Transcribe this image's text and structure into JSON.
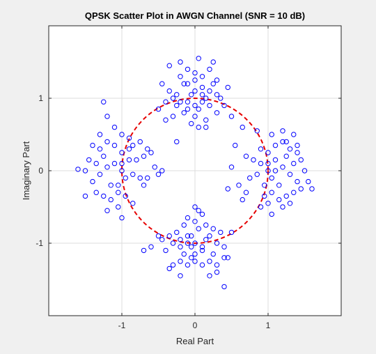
{
  "chart_data": {
    "type": "scatter",
    "title": "QPSK Scatter Plot in AWGN Channel (SNR = 10 dB)",
    "xlabel": "Real Part",
    "ylabel": "Imaginary Part",
    "xlim": [
      -2,
      2
    ],
    "ylim": [
      -2,
      2
    ],
    "xticks": [
      -1,
      0,
      1
    ],
    "yticks": [
      -1,
      0,
      1
    ],
    "xtick_labels": [
      "-1",
      "0",
      "1"
    ],
    "ytick_labels": [
      "-1",
      "0",
      "1"
    ],
    "grid": true,
    "marker_color": "#0000ff",
    "reference_circle": {
      "center": [
        0,
        0
      ],
      "radius": 1,
      "color": "#e60000",
      "style": "dashed"
    },
    "series": [
      {
        "marker": "circle",
        "points": [
          [
            -0.3,
            1.0
          ],
          [
            -0.25,
            0.9
          ],
          [
            -0.15,
            1.2
          ],
          [
            -0.1,
            0.95
          ],
          [
            -0.05,
            1.05
          ],
          [
            0.0,
            1.1
          ],
          [
            0.05,
            0.85
          ],
          [
            0.1,
            1.15
          ],
          [
            0.15,
            1.0
          ],
          [
            0.2,
            0.9
          ],
          [
            0.25,
            1.2
          ],
          [
            0.3,
            1.05
          ],
          [
            -0.35,
            1.1
          ],
          [
            -0.2,
            1.3
          ],
          [
            -0.1,
            1.4
          ],
          [
            0.0,
            1.35
          ],
          [
            0.1,
            1.3
          ],
          [
            0.2,
            1.4
          ],
          [
            0.3,
            1.25
          ],
          [
            -0.3,
            0.75
          ],
          [
            -0.15,
            0.8
          ],
          [
            0.0,
            0.75
          ],
          [
            0.15,
            0.7
          ],
          [
            0.3,
            0.8
          ],
          [
            0.4,
            0.9
          ],
          [
            -0.4,
            0.95
          ],
          [
            -0.45,
            1.2
          ],
          [
            0.45,
            1.15
          ],
          [
            -0.05,
            0.65
          ],
          [
            0.05,
            1.55
          ],
          [
            -0.2,
            1.5
          ],
          [
            0.25,
            1.5
          ],
          [
            -0.35,
            1.45
          ],
          [
            -0.25,
            1.05
          ],
          [
            -0.2,
            0.95
          ],
          [
            0.35,
            1.0
          ],
          [
            0.1,
            1.05
          ],
          [
            0.0,
            0.9
          ],
          [
            -0.1,
            1.2
          ],
          [
            0.2,
            1.1
          ],
          [
            0.05,
            0.6
          ],
          [
            -0.4,
            0.7
          ],
          [
            0.5,
            0.75
          ],
          [
            -0.5,
            0.85
          ],
          [
            0.65,
            0.6
          ],
          [
            -0.25,
            0.4
          ],
          [
            0.15,
            0.6
          ],
          [
            0.0,
            1.25
          ],
          [
            0.1,
            0.95
          ],
          [
            -0.1,
            0.85
          ],
          [
            1.0,
            0.0
          ],
          [
            0.9,
            0.1
          ],
          [
            1.1,
            0.15
          ],
          [
            1.05,
            -0.1
          ],
          [
            0.95,
            -0.2
          ],
          [
            1.2,
            0.05
          ],
          [
            0.85,
            -0.05
          ],
          [
            1.15,
            -0.2
          ],
          [
            1.25,
            0.2
          ],
          [
            0.8,
            0.15
          ],
          [
            1.3,
            -0.05
          ],
          [
            1.35,
            0.1
          ],
          [
            1.4,
            -0.15
          ],
          [
            1.45,
            0.15
          ],
          [
            1.5,
            0.0
          ],
          [
            1.6,
            -0.25
          ],
          [
            0.75,
            -0.1
          ],
          [
            0.7,
            0.2
          ],
          [
            0.7,
            -0.3
          ],
          [
            0.9,
            0.3
          ],
          [
            1.0,
            0.25
          ],
          [
            1.1,
            0.35
          ],
          [
            1.2,
            0.4
          ],
          [
            1.3,
            0.3
          ],
          [
            1.4,
            0.35
          ],
          [
            0.95,
            -0.35
          ],
          [
            1.05,
            -0.3
          ],
          [
            1.15,
            -0.4
          ],
          [
            1.25,
            -0.35
          ],
          [
            1.35,
            -0.3
          ],
          [
            1.0,
            -0.45
          ],
          [
            0.9,
            -0.5
          ],
          [
            1.2,
            -0.5
          ],
          [
            1.3,
            -0.45
          ],
          [
            1.05,
            0.5
          ],
          [
            1.2,
            0.55
          ],
          [
            1.25,
            0.4
          ],
          [
            1.35,
            0.5
          ],
          [
            0.55,
            0.35
          ],
          [
            0.6,
            -0.2
          ],
          [
            0.65,
            -0.4
          ],
          [
            0.5,
            0.05
          ],
          [
            0.45,
            -0.25
          ],
          [
            1.55,
            -0.15
          ],
          [
            1.45,
            -0.25
          ],
          [
            1.4,
            0.25
          ],
          [
            0.85,
            0.55
          ],
          [
            1.05,
            -0.6
          ],
          [
            1.0,
            0.1
          ],
          [
            1.1,
            0.0
          ],
          [
            -1.0,
            0.0
          ],
          [
            -1.1,
            0.1
          ],
          [
            -0.9,
            0.15
          ],
          [
            -0.95,
            -0.1
          ],
          [
            -1.05,
            -0.2
          ],
          [
            -1.2,
            0.05
          ],
          [
            -0.85,
            -0.05
          ],
          [
            -1.15,
            -0.2
          ],
          [
            -1.25,
            0.2
          ],
          [
            -0.8,
            0.15
          ],
          [
            -1.3,
            -0.05
          ],
          [
            -1.35,
            0.1
          ],
          [
            -1.4,
            -0.15
          ],
          [
            -1.45,
            0.15
          ],
          [
            -1.5,
            0.0
          ],
          [
            -1.6,
            0.02
          ],
          [
            -0.75,
            -0.1
          ],
          [
            -0.7,
            0.2
          ],
          [
            -0.7,
            -0.2
          ],
          [
            -0.9,
            0.3
          ],
          [
            -1.0,
            0.25
          ],
          [
            -1.1,
            0.35
          ],
          [
            -1.2,
            0.4
          ],
          [
            -1.3,
            0.3
          ],
          [
            -1.4,
            0.35
          ],
          [
            -0.95,
            -0.35
          ],
          [
            -1.05,
            -0.3
          ],
          [
            -1.15,
            -0.4
          ],
          [
            -1.25,
            -0.35
          ],
          [
            -1.35,
            -0.3
          ],
          [
            -1.0,
            0.5
          ],
          [
            -0.9,
            0.45
          ],
          [
            -1.1,
            0.6
          ],
          [
            -1.3,
            0.5
          ],
          [
            -1.05,
            -0.5
          ],
          [
            -1.2,
            -0.55
          ],
          [
            -0.85,
            -0.45
          ],
          [
            -1.0,
            -0.65
          ],
          [
            -0.55,
            0.05
          ],
          [
            -0.6,
            0.25
          ],
          [
            -0.65,
            -0.1
          ],
          [
            -0.5,
            -0.05
          ],
          [
            -0.45,
            0.0
          ],
          [
            -0.65,
            0.3
          ],
          [
            -1.5,
            -0.35
          ],
          [
            -1.25,
            0.95
          ],
          [
            -1.2,
            0.75
          ],
          [
            -0.75,
            0.4
          ],
          [
            -0.85,
            0.35
          ],
          [
            -1.0,
            0.1
          ],
          [
            0.0,
            -1.0
          ],
          [
            -0.1,
            -0.9
          ],
          [
            0.15,
            -0.95
          ],
          [
            -0.05,
            -1.05
          ],
          [
            0.1,
            -1.1
          ],
          [
            -0.2,
            -1.05
          ],
          [
            0.2,
            -0.9
          ],
          [
            -0.15,
            -1.15
          ],
          [
            0.25,
            -1.15
          ],
          [
            -0.25,
            -0.85
          ],
          [
            0.3,
            -1.0
          ],
          [
            -0.3,
            -1.0
          ],
          [
            0.05,
            -0.8
          ],
          [
            -0.05,
            -1.2
          ],
          [
            0.0,
            -1.25
          ],
          [
            0.1,
            -1.3
          ],
          [
            -0.1,
            -1.3
          ],
          [
            0.2,
            -1.25
          ],
          [
            -0.2,
            -1.25
          ],
          [
            0.3,
            -1.3
          ],
          [
            -0.3,
            -1.3
          ],
          [
            0.0,
            -0.7
          ],
          [
            -0.1,
            -0.65
          ],
          [
            0.1,
            -0.6
          ],
          [
            0.0,
            -0.5
          ],
          [
            0.05,
            -0.55
          ],
          [
            -0.15,
            -0.75
          ],
          [
            0.15,
            -0.75
          ],
          [
            -0.35,
            -0.9
          ],
          [
            0.35,
            -0.85
          ],
          [
            -0.4,
            -1.1
          ],
          [
            0.4,
            -1.05
          ],
          [
            -0.45,
            -0.95
          ],
          [
            0.45,
            -1.2
          ],
          [
            -0.5,
            -0.9
          ],
          [
            0.5,
            -0.85
          ],
          [
            -0.35,
            -1.35
          ],
          [
            0.2,
            -1.45
          ],
          [
            0.4,
            -1.6
          ],
          [
            -0.2,
            -1.45
          ],
          [
            0.4,
            -1.2
          ],
          [
            -0.6,
            -1.05
          ],
          [
            -0.7,
            -1.1
          ],
          [
            0.3,
            -1.4
          ],
          [
            -0.05,
            -0.9
          ],
          [
            0.25,
            -0.8
          ],
          [
            -0.2,
            -0.95
          ],
          [
            0.1,
            -1.05
          ],
          [
            -0.1,
            -1.0
          ],
          [
            0.0,
            -1.15
          ]
        ]
      }
    ]
  }
}
